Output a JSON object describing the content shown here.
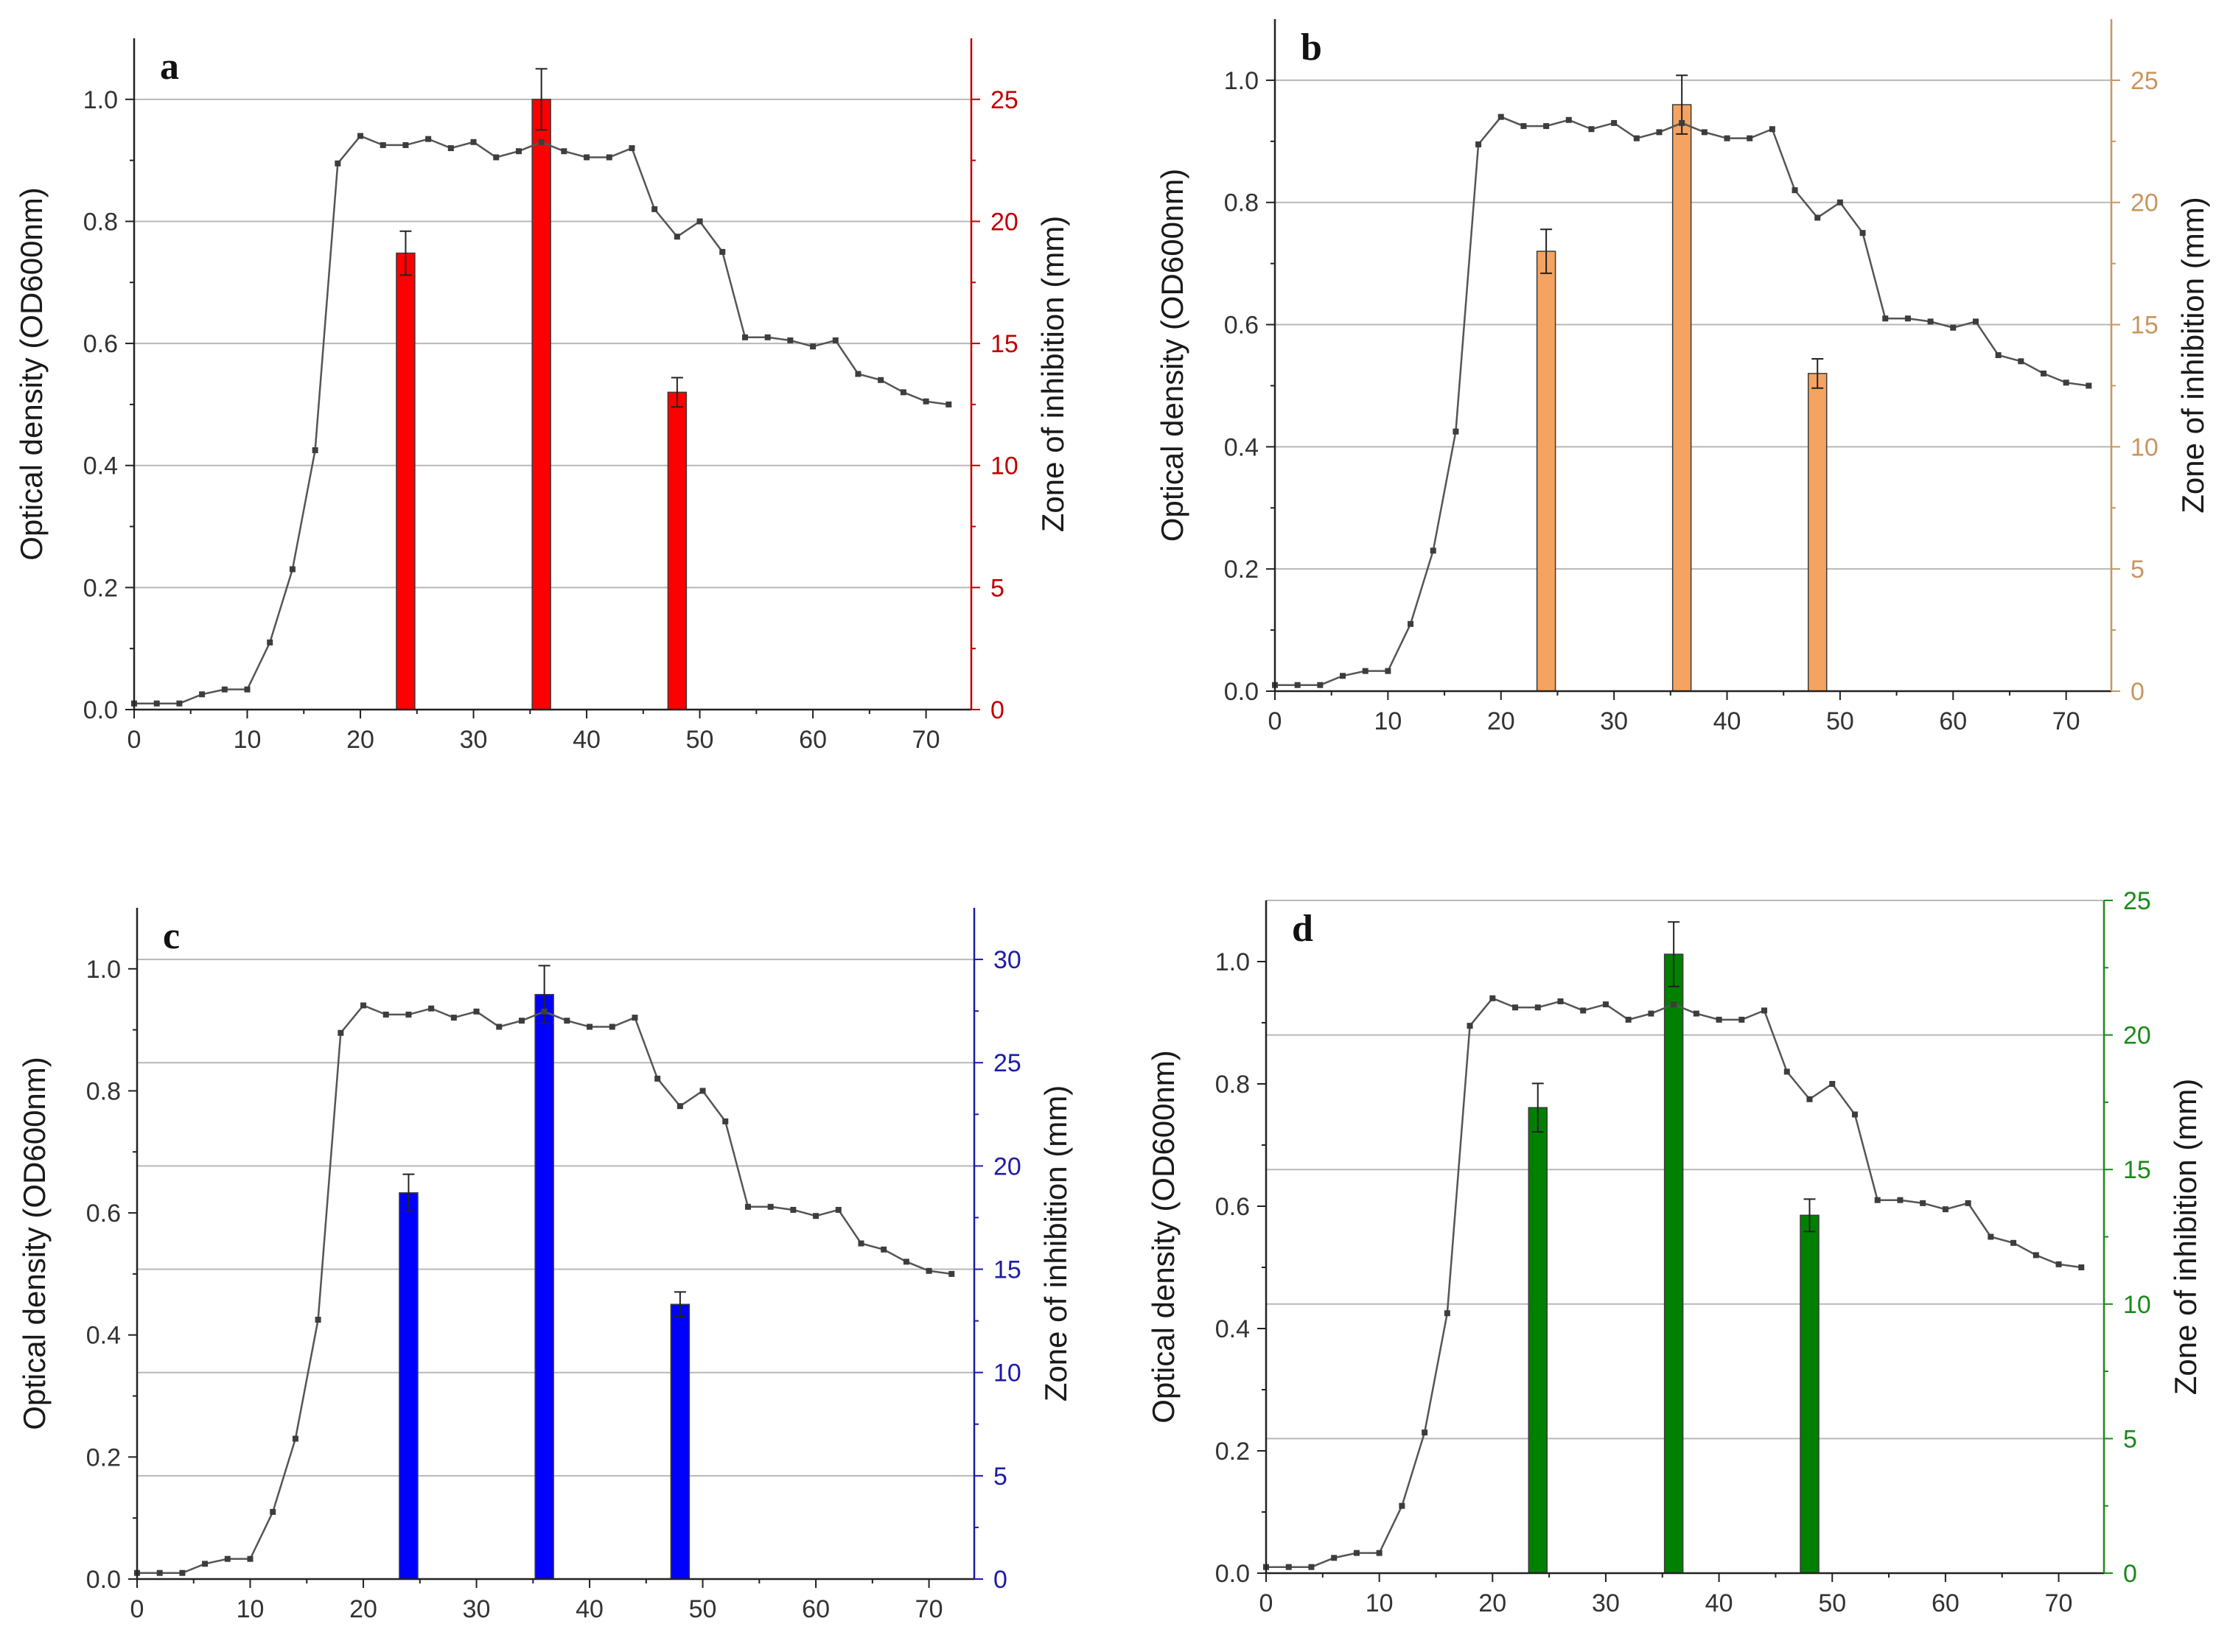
{
  "chart_data": [
    {
      "type": "bar+line",
      "panel": "a",
      "color": "#ff0000",
      "axis_color": "#c00000",
      "xlabel": "",
      "ylabel": "Optical density (OD600nm)",
      "y2label": "Zone of inhibition (mm)",
      "xlim": [
        0,
        74
      ],
      "ylim": [
        0,
        1.1
      ],
      "y2lim": [
        0,
        27.5
      ],
      "xticks": [
        0,
        10,
        20,
        30,
        40,
        50,
        60,
        70
      ],
      "yticks": [
        0.0,
        0.2,
        0.4,
        0.6,
        0.8,
        1.0
      ],
      "y2ticks": [
        0,
        5,
        10,
        15,
        20,
        25
      ],
      "grid": "right-axis",
      "line": {
        "name": "OD600",
        "x": [
          0,
          2,
          4,
          6,
          8,
          10,
          12,
          14,
          16,
          18,
          20,
          22,
          24,
          26,
          28,
          30,
          32,
          34,
          36,
          38,
          40,
          42,
          44,
          46,
          48,
          50,
          52,
          54,
          56,
          58,
          60,
          62,
          64,
          66,
          68,
          70,
          72
        ],
        "y": [
          0.01,
          0.01,
          0.01,
          0.025,
          0.033,
          0.033,
          0.11,
          0.23,
          0.425,
          0.895,
          0.94,
          0.925,
          0.925,
          0.935,
          0.92,
          0.93,
          0.905,
          0.915,
          0.93,
          0.915,
          0.905,
          0.905,
          0.92,
          0.82,
          0.775,
          0.8,
          0.75,
          0.61,
          0.61,
          0.605,
          0.595,
          0.605,
          0.55,
          0.54,
          0.52,
          0.505,
          0.5
        ]
      },
      "bars": {
        "name": "Zone of inhibition",
        "x": [
          24,
          36,
          48
        ],
        "values": [
          18.7,
          25.0,
          13.0
        ],
        "errors": [
          0.9,
          1.25,
          0.6
        ]
      }
    },
    {
      "type": "bar+line",
      "panel": "b",
      "color": "#f4a460",
      "axis_color": "#c8965e",
      "xlabel": "",
      "ylabel": "Optical density (OD600nm)",
      "y2label": "Zone of inhibition (mm)",
      "xlim": [
        0,
        74
      ],
      "ylim": [
        0,
        1.1
      ],
      "y2lim": [
        0,
        27.5
      ],
      "xticks": [
        0,
        10,
        20,
        30,
        40,
        50,
        60,
        70
      ],
      "yticks": [
        0.0,
        0.2,
        0.4,
        0.6,
        0.8,
        1.0
      ],
      "y2ticks": [
        0,
        5,
        10,
        15,
        20,
        25
      ],
      "grid": "right-axis",
      "line": {
        "name": "OD600",
        "x": [
          0,
          2,
          4,
          6,
          8,
          10,
          12,
          14,
          16,
          18,
          20,
          22,
          24,
          26,
          28,
          30,
          32,
          34,
          36,
          38,
          40,
          42,
          44,
          46,
          48,
          50,
          52,
          54,
          56,
          58,
          60,
          62,
          64,
          66,
          68,
          70,
          72
        ],
        "y": [
          0.01,
          0.01,
          0.01,
          0.025,
          0.033,
          0.033,
          0.11,
          0.23,
          0.425,
          0.895,
          0.94,
          0.925,
          0.925,
          0.935,
          0.92,
          0.93,
          0.905,
          0.915,
          0.93,
          0.915,
          0.905,
          0.905,
          0.92,
          0.82,
          0.775,
          0.8,
          0.75,
          0.61,
          0.61,
          0.605,
          0.595,
          0.605,
          0.55,
          0.54,
          0.52,
          0.505,
          0.5
        ]
      },
      "bars": {
        "name": "Zone of inhibition",
        "x": [
          24,
          36,
          48
        ],
        "values": [
          18.0,
          24.0,
          13.0
        ],
        "errors": [
          0.9,
          1.2,
          0.6
        ]
      }
    },
    {
      "type": "bar+line",
      "panel": "c",
      "color": "#0000ff",
      "axis_color": "#1c1ca8",
      "xlabel": "",
      "ylabel": "Optical density (OD600nm)",
      "y2label": "Zone of inhibition (mm)",
      "xlim": [
        0,
        74
      ],
      "ylim": [
        0,
        1.1
      ],
      "y2lim": [
        0,
        32.5
      ],
      "xticks": [
        0,
        10,
        20,
        30,
        40,
        50,
        60,
        70
      ],
      "yticks": [
        0.0,
        0.2,
        0.4,
        0.6,
        0.8,
        1.0
      ],
      "y2ticks": [
        0,
        5,
        10,
        15,
        20,
        25,
        30
      ],
      "grid": "right-axis",
      "line": {
        "name": "OD600",
        "x": [
          0,
          2,
          4,
          6,
          8,
          10,
          12,
          14,
          16,
          18,
          20,
          22,
          24,
          26,
          28,
          30,
          32,
          34,
          36,
          38,
          40,
          42,
          44,
          46,
          48,
          50,
          52,
          54,
          56,
          58,
          60,
          62,
          64,
          66,
          68,
          70,
          72
        ],
        "y": [
          0.01,
          0.01,
          0.01,
          0.025,
          0.033,
          0.033,
          0.11,
          0.23,
          0.425,
          0.895,
          0.94,
          0.925,
          0.925,
          0.935,
          0.92,
          0.93,
          0.905,
          0.915,
          0.93,
          0.915,
          0.905,
          0.905,
          0.92,
          0.82,
          0.775,
          0.8,
          0.75,
          0.61,
          0.61,
          0.605,
          0.595,
          0.605,
          0.55,
          0.54,
          0.52,
          0.505,
          0.5
        ]
      },
      "bars": {
        "name": "Zone of inhibition",
        "x": [
          24,
          36,
          48
        ],
        "values": [
          18.7,
          28.3,
          13.3
        ],
        "errors": [
          0.9,
          1.4,
          0.6
        ]
      }
    },
    {
      "type": "bar+line",
      "panel": "d",
      "color": "#008000",
      "axis_color": "#1a8a1a",
      "xlabel": "",
      "ylabel": "Optical density (OD600nm)",
      "y2label": "Zone of inhibition (mm)",
      "xlim": [
        0,
        74
      ],
      "ylim": [
        0,
        1.1
      ],
      "y2lim": [
        0,
        25
      ],
      "xticks": [
        0,
        10,
        20,
        30,
        40,
        50,
        60,
        70
      ],
      "yticks": [
        0.0,
        0.2,
        0.4,
        0.6,
        0.8,
        1.0
      ],
      "y2ticks": [
        0,
        5,
        10,
        15,
        20,
        25
      ],
      "grid": "right-axis",
      "line": {
        "name": "OD600",
        "x": [
          0,
          2,
          4,
          6,
          8,
          10,
          12,
          14,
          16,
          18,
          20,
          22,
          24,
          26,
          28,
          30,
          32,
          34,
          36,
          38,
          40,
          42,
          44,
          46,
          48,
          50,
          52,
          54,
          56,
          58,
          60,
          62,
          64,
          66,
          68,
          70,
          72
        ],
        "y": [
          0.01,
          0.01,
          0.01,
          0.025,
          0.033,
          0.033,
          0.11,
          0.23,
          0.425,
          0.895,
          0.94,
          0.925,
          0.925,
          0.935,
          0.92,
          0.93,
          0.905,
          0.915,
          0.93,
          0.915,
          0.905,
          0.905,
          0.92,
          0.82,
          0.775,
          0.8,
          0.75,
          0.61,
          0.61,
          0.605,
          0.595,
          0.605,
          0.55,
          0.54,
          0.52,
          0.505,
          0.5
        ]
      },
      "bars": {
        "name": "Zone of inhibition",
        "x": [
          24,
          36,
          48
        ],
        "values": [
          17.3,
          23.0,
          13.3
        ],
        "errors": [
          0.9,
          1.2,
          0.6
        ]
      }
    }
  ]
}
